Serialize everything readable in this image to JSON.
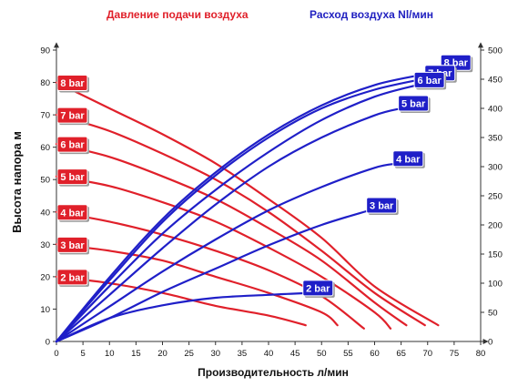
{
  "headers": {
    "pressure_label": "Давление подачи воздуха",
    "air_flow_label": "Расход воздуха Nl/мин"
  },
  "colors": {
    "pressure": "#e0202a",
    "air_flow": "#1f1fc8",
    "tag_shadow": "#9a9a9a"
  },
  "chart_data": {
    "type": "line",
    "xlabel": "Производительность л/мин",
    "ylabel": "Высота напора м",
    "xlim": [
      0,
      80
    ],
    "xticks": [
      0,
      5,
      10,
      15,
      20,
      25,
      30,
      35,
      40,
      45,
      50,
      55,
      60,
      65,
      70,
      75,
      80
    ],
    "ylim_left": [
      0,
      90
    ],
    "yticks_left": [
      0,
      10,
      20,
      30,
      40,
      50,
      60,
      70,
      80,
      90
    ],
    "ylim_right": [
      0,
      500
    ],
    "yticks_right": [
      0,
      50,
      100,
      150,
      200,
      250,
      300,
      350,
      400,
      450,
      500
    ],
    "grid": false,
    "pressure_series": [
      {
        "name": "8 bar",
        "axis": "left",
        "points": [
          [
            0,
            80
          ],
          [
            10,
            72
          ],
          [
            20,
            64
          ],
          [
            30,
            55
          ],
          [
            40,
            44
          ],
          [
            50,
            32
          ],
          [
            60,
            17
          ],
          [
            72,
            5
          ]
        ]
      },
      {
        "name": "7 bar",
        "axis": "left",
        "points": [
          [
            0,
            70
          ],
          [
            10,
            65
          ],
          [
            20,
            58
          ],
          [
            30,
            50
          ],
          [
            40,
            40
          ],
          [
            50,
            28
          ],
          [
            60,
            15
          ],
          [
            69.5,
            5
          ]
        ]
      },
      {
        "name": "6 bar",
        "axis": "left",
        "points": [
          [
            0,
            61
          ],
          [
            10,
            57
          ],
          [
            20,
            51
          ],
          [
            30,
            44
          ],
          [
            40,
            35
          ],
          [
            50,
            25
          ],
          [
            60,
            12
          ],
          [
            66,
            5
          ]
        ]
      },
      {
        "name": "5 bar",
        "axis": "left",
        "points": [
          [
            0,
            51
          ],
          [
            10,
            48
          ],
          [
            20,
            43
          ],
          [
            30,
            37
          ],
          [
            40,
            29
          ],
          [
            50,
            20
          ],
          [
            60,
            9
          ],
          [
            63,
            4
          ]
        ]
      },
      {
        "name": "4 bar",
        "axis": "left",
        "points": [
          [
            0,
            40
          ],
          [
            10,
            37
          ],
          [
            20,
            33
          ],
          [
            30,
            28
          ],
          [
            40,
            22
          ],
          [
            50,
            14
          ],
          [
            58,
            4
          ]
        ]
      },
      {
        "name": "3 bar",
        "axis": "left",
        "points": [
          [
            0,
            30
          ],
          [
            10,
            28
          ],
          [
            20,
            25
          ],
          [
            30,
            20
          ],
          [
            40,
            15
          ],
          [
            50,
            9
          ],
          [
            53,
            5
          ]
        ]
      },
      {
        "name": "2 bar",
        "axis": "left",
        "points": [
          [
            0,
            20
          ],
          [
            10,
            18
          ],
          [
            20,
            15
          ],
          [
            30,
            11
          ],
          [
            40,
            8
          ],
          [
            47,
            5
          ]
        ]
      }
    ],
    "air_flow_series": [
      {
        "name": "8 bar",
        "axis": "right",
        "points": [
          [
            0,
            0
          ],
          [
            10,
            110
          ],
          [
            20,
            210
          ],
          [
            30,
            290
          ],
          [
            40,
            355
          ],
          [
            50,
            405
          ],
          [
            60,
            440
          ],
          [
            70,
            460
          ],
          [
            73,
            470
          ]
        ]
      },
      {
        "name": "7 bar",
        "axis": "right",
        "points": [
          [
            0,
            0
          ],
          [
            10,
            105
          ],
          [
            20,
            205
          ],
          [
            30,
            285
          ],
          [
            40,
            350
          ],
          [
            50,
            400
          ],
          [
            60,
            432
          ],
          [
            70,
            452
          ]
        ]
      },
      {
        "name": "6 bar",
        "axis": "right",
        "points": [
          [
            0,
            0
          ],
          [
            10,
            95
          ],
          [
            20,
            185
          ],
          [
            30,
            260
          ],
          [
            40,
            325
          ],
          [
            50,
            380
          ],
          [
            60,
            420
          ],
          [
            68,
            440
          ]
        ]
      },
      {
        "name": "5 bar",
        "axis": "right",
        "points": [
          [
            0,
            0
          ],
          [
            10,
            80
          ],
          [
            20,
            160
          ],
          [
            30,
            235
          ],
          [
            40,
            300
          ],
          [
            50,
            350
          ],
          [
            60,
            388
          ],
          [
            65,
            400
          ]
        ]
      },
      {
        "name": "4 bar",
        "axis": "right",
        "points": [
          [
            0,
            0
          ],
          [
            10,
            60
          ],
          [
            20,
            120
          ],
          [
            30,
            175
          ],
          [
            40,
            225
          ],
          [
            50,
            265
          ],
          [
            60,
            298
          ],
          [
            64,
            305
          ]
        ]
      },
      {
        "name": "3 bar",
        "axis": "right",
        "points": [
          [
            0,
            0
          ],
          [
            10,
            40
          ],
          [
            20,
            85
          ],
          [
            30,
            125
          ],
          [
            40,
            165
          ],
          [
            50,
            200
          ],
          [
            59,
            225
          ]
        ]
      },
      {
        "name": "2 bar",
        "axis": "right",
        "points": [
          [
            0,
            0
          ],
          [
            10,
            40
          ],
          [
            20,
            62
          ],
          [
            30,
            75
          ],
          [
            40,
            80
          ],
          [
            47,
            83
          ]
        ]
      }
    ]
  }
}
